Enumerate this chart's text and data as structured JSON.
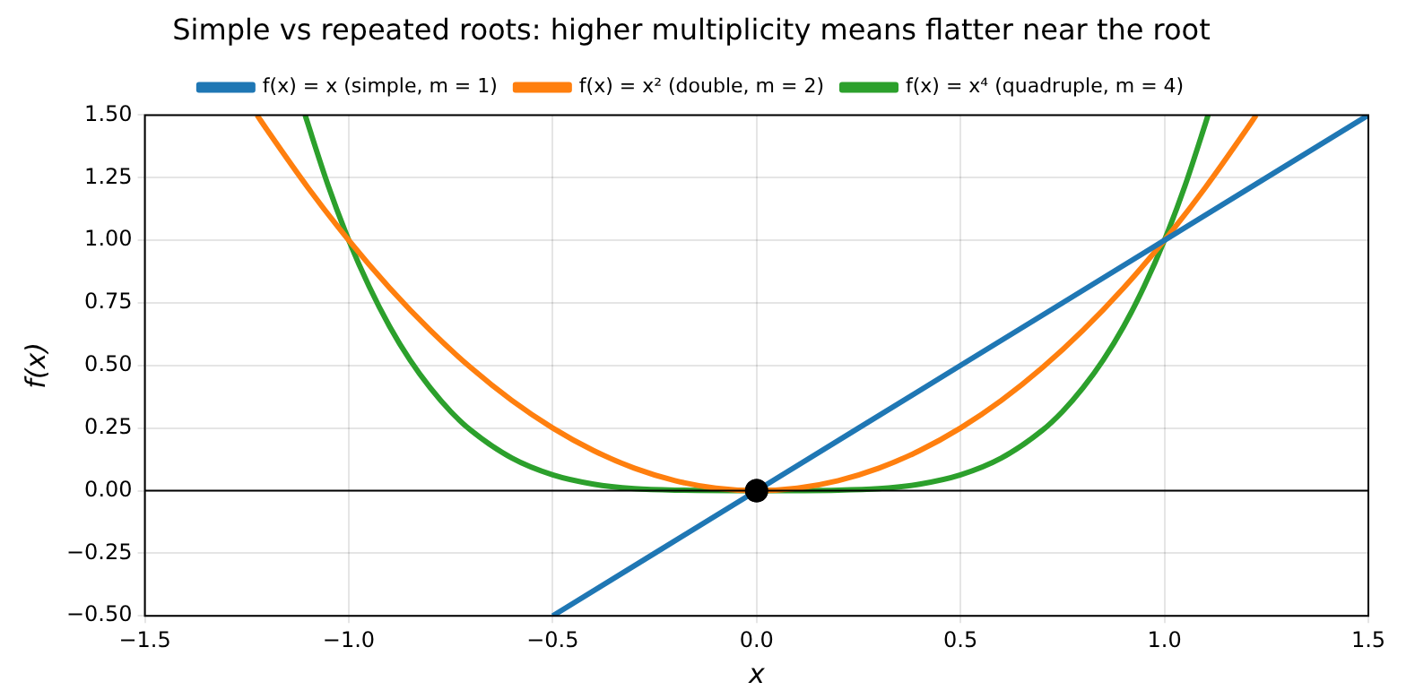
{
  "chart_data": {
    "type": "line",
    "title": "Simple vs repeated roots: higher multiplicity means flatter near the root",
    "xlabel": "x",
    "ylabel": "f(x)",
    "xlim": [
      -1.5,
      1.5
    ],
    "ylim": [
      -0.5,
      1.5
    ],
    "xticks": [
      {
        "value": -1.5,
        "label": "−1.5"
      },
      {
        "value": -1.0,
        "label": "−1.0"
      },
      {
        "value": -0.5,
        "label": "−0.5"
      },
      {
        "value": 0,
        "label": "0.0"
      },
      {
        "value": 0.5,
        "label": "0.5"
      },
      {
        "value": 1.0,
        "label": "1.0"
      },
      {
        "value": 1.5,
        "label": "1.5"
      }
    ],
    "yticks": [
      {
        "value": -0.5,
        "label": "−0.50"
      },
      {
        "value": -0.25,
        "label": "−0.25"
      },
      {
        "value": 0,
        "label": "0.00"
      },
      {
        "value": 0.25,
        "label": "0.25"
      },
      {
        "value": 0.5,
        "label": "0.50"
      },
      {
        "value": 0.75,
        "label": "0.75"
      },
      {
        "value": 1.0,
        "label": "1.00"
      },
      {
        "value": 1.25,
        "label": "1.25"
      },
      {
        "value": 1.5,
        "label": "1.50"
      }
    ],
    "grid": true,
    "legend": "top",
    "line_style": "solid",
    "ref_lines": [
      {
        "axis": "y",
        "value": 0,
        "color": "#000000"
      }
    ],
    "series": [
      {
        "name": "f(x) = x (simple, m = 1)",
        "color": "#1f77b4",
        "x": [
          -0.5,
          0,
          0.5,
          1.0,
          1.5
        ],
        "values": [
          -0.5,
          0,
          0.5,
          1.0,
          1.5
        ]
      },
      {
        "name": "f(x) = x² (double, m = 2)",
        "color": "#ff7f0e",
        "x": [
          -1.225,
          -1.2,
          -1.1,
          -1.0,
          -0.9,
          -0.8,
          -0.7,
          -0.6,
          -0.5,
          -0.4,
          -0.3,
          -0.2,
          -0.1,
          0,
          0.1,
          0.2,
          0.3,
          0.4,
          0.5,
          0.6,
          0.7,
          0.8,
          0.9,
          1.0,
          1.1,
          1.2,
          1.225
        ],
        "values": [
          1.5,
          1.44,
          1.21,
          1.0,
          0.81,
          0.64,
          0.49,
          0.36,
          0.25,
          0.16,
          0.09,
          0.04,
          0.01,
          0,
          0.01,
          0.04,
          0.09,
          0.16,
          0.25,
          0.36,
          0.49,
          0.64,
          0.81,
          1.0,
          1.21,
          1.44,
          1.5
        ]
      },
      {
        "name": "f(x) = x⁴ (quadruple, m = 4)",
        "color": "#2ca02c",
        "x": [
          -1.107,
          -1.1,
          -1.05,
          -1.0,
          -0.95,
          -0.9,
          -0.85,
          -0.8,
          -0.75,
          -0.7,
          -0.6,
          -0.5,
          -0.4,
          -0.3,
          -0.2,
          0,
          0.2,
          0.3,
          0.4,
          0.5,
          0.6,
          0.7,
          0.75,
          0.8,
          0.85,
          0.9,
          0.95,
          1.0,
          1.05,
          1.1,
          1.107
        ],
        "values": [
          1.5,
          1.464,
          1.216,
          1.0,
          0.815,
          0.656,
          0.522,
          0.41,
          0.316,
          0.24,
          0.13,
          0.063,
          0.026,
          0.008,
          0.002,
          0,
          0.002,
          0.008,
          0.026,
          0.063,
          0.13,
          0.24,
          0.316,
          0.41,
          0.522,
          0.656,
          0.815,
          1.0,
          1.216,
          1.464,
          1.5
        ]
      },
      {
        "type": "scatter",
        "color": "#000000",
        "marker": "circle",
        "x": [
          0
        ],
        "values": [
          0
        ]
      }
    ]
  }
}
